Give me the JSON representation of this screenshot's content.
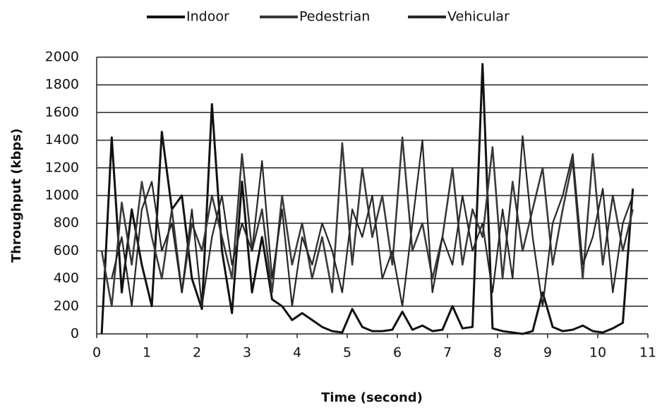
{
  "chart_data": {
    "type": "line",
    "xlabel": "Time (second)",
    "ylabel": "Throughput (kbps)",
    "x": [
      0.1,
      0.3,
      0.5,
      0.7,
      0.9,
      1.1,
      1.3,
      1.5,
      1.7,
      1.9,
      2.1,
      2.3,
      2.5,
      2.7,
      2.9,
      3.1,
      3.3,
      3.5,
      3.7,
      3.9,
      4.1,
      4.3,
      4.5,
      4.7,
      4.9,
      5.1,
      5.3,
      5.5,
      5.7,
      5.9,
      6.1,
      6.3,
      6.5,
      6.7,
      6.9,
      7.1,
      7.3,
      7.5,
      7.7,
      7.9,
      8.1,
      8.3,
      8.5,
      8.7,
      8.9,
      9.1,
      9.3,
      9.5,
      9.7,
      9.9,
      10.1,
      10.3,
      10.5,
      10.7
    ],
    "series": [
      {
        "name": "Indoor",
        "color": "#111111",
        "values": [
          0,
          1420,
          300,
          900,
          500,
          200,
          1460,
          900,
          1000,
          400,
          180,
          1660,
          600,
          150,
          1100,
          300,
          700,
          250,
          200,
          100,
          150,
          100,
          50,
          20,
          10,
          180,
          50,
          20,
          20,
          30,
          160,
          30,
          60,
          20,
          30,
          200,
          40,
          50,
          1950,
          40,
          20,
          10,
          0,
          20,
          300,
          50,
          20,
          30,
          60,
          20,
          10,
          40,
          80,
          1050
        ]
      },
      {
        "name": "Pedestrian",
        "color": "#3a3a3a",
        "values": [
          600,
          200,
          950,
          500,
          1100,
          700,
          400,
          900,
          300,
          800,
          600,
          1000,
          700,
          400,
          1300,
          600,
          900,
          300,
          1000,
          500,
          800,
          400,
          700,
          300,
          1380,
          500,
          1200,
          700,
          1000,
          500,
          1420,
          600,
          800,
          400,
          700,
          1200,
          500,
          900,
          700,
          1350,
          400,
          1100,
          600,
          900,
          1200,
          500,
          900,
          1250,
          400,
          1300,
          500,
          1000,
          600,
          900
        ]
      },
      {
        "name": "Vehicular",
        "color": "#262626",
        "values": [
          null,
          400,
          700,
          200,
          900,
          1100,
          600,
          800,
          300,
          900,
          200,
          700,
          1000,
          500,
          800,
          600,
          1250,
          400,
          900,
          200,
          700,
          500,
          800,
          600,
          300,
          900,
          700,
          1000,
          400,
          600,
          200,
          800,
          1400,
          300,
          700,
          500,
          1000,
          600,
          800,
          300,
          900,
          400,
          1430,
          700,
          200,
          800,
          1000,
          1300,
          500,
          700,
          1050,
          300,
          800,
          1000
        ]
      }
    ],
    "xlim": [
      0,
      11
    ],
    "xticks": [
      0,
      1,
      2,
      3,
      4,
      5,
      6,
      7,
      8,
      9,
      10,
      11
    ],
    "ylim": [
      0,
      2000
    ],
    "yticks": [
      0,
      200,
      400,
      600,
      800,
      1000,
      1200,
      1400,
      1600,
      1800,
      2000
    ],
    "grid": true,
    "legend": "top"
  }
}
